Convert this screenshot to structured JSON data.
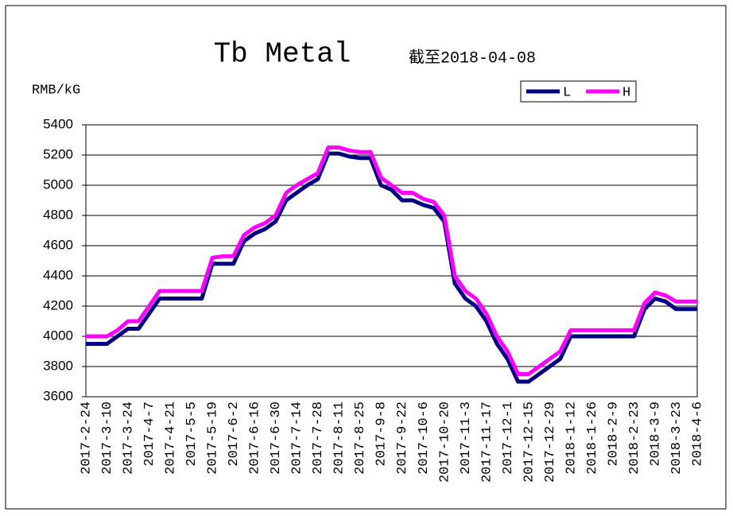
{
  "chart_data": {
    "type": "line",
    "title": "Tb Metal",
    "subtitle": "截至2018-04-08",
    "y_label": "RMB/kG",
    "categories": [
      "2017-2-24",
      null,
      "2017-3-10",
      null,
      "2017-3-24",
      null,
      "2017-4-7",
      null,
      "2017-4-21",
      null,
      "2017-5-5",
      null,
      "2017-5-19",
      null,
      "2017-6-2",
      null,
      "2017-6-16",
      null,
      "2017-6-30",
      null,
      "2017-7-14",
      null,
      "2017-7-28",
      null,
      "2017-8-11",
      null,
      "2017-8-25",
      null,
      "2017-9-8",
      null,
      "2017-9-22",
      null,
      "2017-10-6",
      null,
      "2017-10-20",
      null,
      "2017-11-3",
      null,
      "2017-11-17",
      null,
      "2017-12-1",
      null,
      "2017-12-15",
      null,
      "2017-12-29",
      null,
      "2018-1-12",
      null,
      "2018-1-26",
      null,
      "2018-2-9",
      null,
      "2018-2-23",
      null,
      "2018-3-9",
      null,
      "2018-3-23",
      null,
      "2018-4-6"
    ],
    "series": [
      {
        "name": "L",
        "color": "#000080",
        "values": [
          3950,
          3950,
          3950,
          4000,
          4050,
          4050,
          4150,
          4250,
          4250,
          4250,
          4250,
          4250,
          4480,
          4480,
          4480,
          4630,
          4680,
          4710,
          4760,
          4900,
          4950,
          5000,
          5040,
          5210,
          5210,
          5190,
          5180,
          5180,
          5000,
          4970,
          4900,
          4900,
          4870,
          4850,
          4760,
          4350,
          4250,
          4200,
          4100,
          3950,
          3850,
          3700,
          3700,
          3750,
          3800,
          3850,
          4000,
          4000,
          4000,
          4000,
          4000,
          4000,
          4000,
          4180,
          4250,
          4230,
          4180,
          4180,
          4180
        ]
      },
      {
        "name": "H",
        "color": "#ff00ff",
        "values": [
          4000,
          4000,
          4000,
          4040,
          4100,
          4100,
          4200,
          4300,
          4300,
          4300,
          4300,
          4300,
          4520,
          4530,
          4530,
          4670,
          4720,
          4750,
          4800,
          4950,
          5000,
          5040,
          5080,
          5250,
          5250,
          5230,
          5220,
          5220,
          5050,
          5000,
          4950,
          4950,
          4910,
          4890,
          4800,
          4400,
          4300,
          4250,
          4150,
          4000,
          3900,
          3750,
          3750,
          3800,
          3850,
          3900,
          4040,
          4040,
          4040,
          4040,
          4040,
          4040,
          4040,
          4220,
          4290,
          4270,
          4230,
          4230,
          4230
        ]
      }
    ],
    "ylim": [
      3600,
      5400
    ],
    "yticks": [
      3600,
      3800,
      4000,
      4200,
      4400,
      4600,
      4800,
      5000,
      5200,
      5400
    ],
    "grid": true,
    "legend": "top-right"
  }
}
